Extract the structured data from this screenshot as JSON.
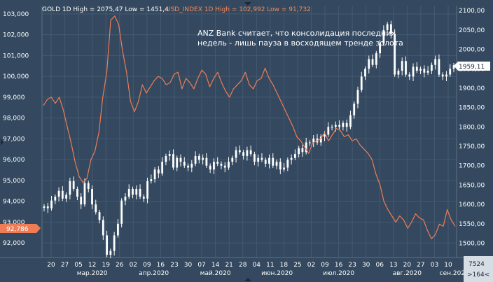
{
  "header": {
    "gold_title": "GOLD 1D  High = 2075,47  Low = 1451,4",
    "usd_title": "USD_INDEX 1D  High = 102,992  Low = 91,732"
  },
  "annotation": {
    "line1": "ANZ Bank считает, что консолидация последних",
    "line2": "недель - лишь пауза в восходящем тренде золота"
  },
  "badges": {
    "usd_last": "92,786",
    "gold_last": "1959,11",
    "bar_count": "7524",
    "scroll": ">164<"
  },
  "colors": {
    "background": "#34495f",
    "grid": "#445a72",
    "gold_candles": "#ffffff",
    "usd_line": "#ef7c55",
    "badge_usd": "#ef7c55",
    "badge_gold": "#ffffff",
    "bottom_bar": "#d6dde4"
  },
  "chart_data": {
    "type": "line",
    "left_axis": {
      "name": "USD_INDEX",
      "ticks": [
        "92,000",
        "93,000",
        "94,000",
        "95,000",
        "96,000",
        "97,000",
        "98,000",
        "99,000",
        "100,000",
        "101,000",
        "102,000",
        "103,000"
      ],
      "range": [
        91.3,
        103.4
      ]
    },
    "right_axis": {
      "name": "GOLD",
      "ticks": [
        "1500,00",
        "1550,00",
        "1600,00",
        "1650,00",
        "1700,00",
        "1750,00",
        "1800,00",
        "1850,00",
        "1900,00",
        "1950,00",
        "2000,00",
        "2050,00",
        "2100,00"
      ],
      "range": [
        1463,
        2113
      ]
    },
    "x_tick_labels": [
      "20",
      "27",
      "05",
      "12",
      "19",
      "26",
      "02",
      "09",
      "16",
      "23",
      "30",
      "07",
      "14",
      "21",
      "28",
      "04",
      "11",
      "18",
      "25",
      "02",
      "09",
      "16",
      "23",
      "30",
      "06",
      "13",
      "20",
      "27",
      "03",
      "10"
    ],
    "month_labels": [
      {
        "label": "мар.2020",
        "pos": 3
      },
      {
        "label": "апр.2020",
        "pos": 7.5
      },
      {
        "label": "май.2020",
        "pos": 12
      },
      {
        "label": "июн.2020",
        "pos": 16.5
      },
      {
        "label": "июл.2020",
        "pos": 21
      },
      {
        "label": "авг.2020",
        "pos": 26
      },
      {
        "label": "сен.202",
        "pos": 29.3
      }
    ],
    "series": [
      {
        "name": "USD_INDEX",
        "values": [
          98.6,
          98.9,
          99.0,
          98.7,
          99.0,
          98.4,
          97.6,
          96.8,
          95.9,
          95.2,
          94.9,
          95.1,
          96.0,
          96.4,
          97.3,
          99.0,
          100.2,
          102.7,
          102.9,
          102.5,
          101.2,
          100.2,
          98.8,
          98.3,
          98.8,
          99.6,
          99.2,
          99.5,
          99.8,
          100.0,
          99.9,
          99.6,
          99.7,
          100.1,
          100.2,
          99.4,
          99.9,
          99.7,
          99.4,
          99.9,
          100.3,
          100.1,
          99.5,
          99.9,
          100.2,
          99.7,
          99.3,
          99.0,
          99.4,
          99.6,
          99.8,
          100.2,
          99.6,
          99.4,
          99.8,
          99.9,
          100.4,
          99.9,
          99.6,
          99.2,
          98.8,
          98.4,
          98.0,
          97.6,
          97.1,
          96.9,
          96.6,
          96.3,
          96.8,
          96.9,
          97.0,
          97.3,
          96.9,
          97.2,
          97.5,
          97.4,
          97.1,
          97.2,
          96.9,
          97.0,
          96.7,
          96.5,
          96.3,
          96.0,
          95.3,
          94.8,
          94.0,
          93.6,
          93.3,
          93.0,
          93.3,
          93.1,
          92.7,
          93.0,
          93.4,
          93.2,
          93.1,
          92.6,
          92.2,
          92.4,
          92.9,
          92.8,
          93.6,
          93.1,
          92.8
        ]
      },
      {
        "name": "GOLD",
        "values": [
          1595,
          1590,
          1610,
          1620,
          1635,
          1615,
          1625,
          1660,
          1640,
          1620,
          1600,
          1655,
          1640,
          1600,
          1580,
          1560,
          1520,
          1470,
          1480,
          1520,
          1550,
          1610,
          1620,
          1640,
          1625,
          1640,
          1620,
          1615,
          1660,
          1665,
          1690,
          1680,
          1710,
          1725,
          1730,
          1695,
          1720,
          1710,
          1700,
          1695,
          1705,
          1725,
          1715,
          1720,
          1700,
          1690,
          1710,
          1705,
          1700,
          1695,
          1710,
          1720,
          1740,
          1735,
          1725,
          1740,
          1730,
          1710,
          1720,
          1715,
          1705,
          1720,
          1700,
          1710,
          1690,
          1695,
          1715,
          1720,
          1730,
          1745,
          1735,
          1760,
          1760,
          1770,
          1760,
          1775,
          1780,
          1800,
          1800,
          1805,
          1800,
          1810,
          1800,
          1830,
          1860,
          1895,
          1930,
          1950,
          1975,
          1960,
          1990,
          2015,
          2050,
          2065,
          2040,
          1935,
          1945,
          1970,
          1935,
          1930,
          1955,
          1945,
          1950,
          1940,
          1945,
          1960,
          1975,
          1935,
          1930,
          1935,
          1950,
          1959
        ]
      }
    ]
  }
}
